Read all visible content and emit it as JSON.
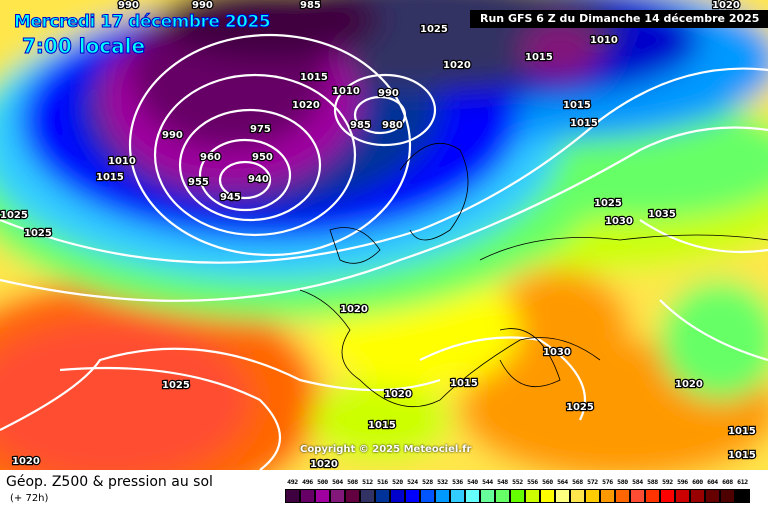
{
  "header": {
    "date": "Mercredi 17 décembre 2025",
    "time": "7:00 locale",
    "run": "Run GFS 6 Z du Dimanche 14 décembre 2025"
  },
  "copyright": "Copyright © 2025 Meteociel.fr",
  "footer": {
    "title": "Géop. Z500 & pression au sol",
    "subtitle": "(+ 72h)"
  },
  "legend": {
    "labels": [
      "492",
      "496",
      "500",
      "504",
      "508",
      "512",
      "516",
      "520",
      "524",
      "528",
      "532",
      "536",
      "540",
      "544",
      "548",
      "552",
      "556",
      "560",
      "564",
      "568",
      "572",
      "576",
      "580",
      "584",
      "588",
      "592",
      "596",
      "600",
      "604",
      "608",
      "612"
    ],
    "colors": [
      "#3f0040",
      "#660066",
      "#a000a0",
      "#82187a",
      "#620040",
      "#323264",
      "#003399",
      "#0000cc",
      "#0000ff",
      "#0055ff",
      "#0099ff",
      "#33ccff",
      "#66ffff",
      "#66ff99",
      "#66ff66",
      "#66ff00",
      "#ccff00",
      "#ffff00",
      "#ffff80",
      "#ffe64c",
      "#ffcc00",
      "#ff9900",
      "#ff6600",
      "#ff4d33",
      "#ff3300",
      "#ff0000",
      "#cc0000",
      "#990000",
      "#660000",
      "#4d0000",
      "#000000"
    ]
  },
  "pressure_labels": [
    {
      "text": "990",
      "lon": "nw"
    },
    {
      "text": "990",
      "lon": "n"
    },
    {
      "text": "985",
      "lon": "n"
    },
    {
      "text": "1025",
      "lon": "n"
    },
    {
      "text": "1010",
      "lon": "ne"
    },
    {
      "text": "1020",
      "lon": "n"
    },
    {
      "text": "1015",
      "lon": "n"
    },
    {
      "text": "1015",
      "lon": "c"
    },
    {
      "text": "1010",
      "lon": "c"
    },
    {
      "text": "1020",
      "lon": "c"
    },
    {
      "text": "990",
      "lon": "c"
    },
    {
      "text": "985",
      "lon": "c"
    },
    {
      "text": "980",
      "lon": "c"
    },
    {
      "text": "990",
      "lon": "w"
    },
    {
      "text": "1010",
      "lon": "w"
    },
    {
      "text": "1015",
      "lon": "w"
    },
    {
      "text": "975",
      "lon": "c"
    },
    {
      "text": "960",
      "lon": "c"
    },
    {
      "text": "950",
      "lon": "c"
    },
    {
      "text": "940",
      "lon": "c"
    },
    {
      "text": "945",
      "lon": "c"
    },
    {
      "text": "955",
      "lon": "c"
    },
    {
      "text": "1015",
      "lon": "e"
    },
    {
      "text": "1015",
      "lon": "e"
    },
    {
      "text": "1025",
      "lon": "w"
    },
    {
      "text": "1025",
      "lon": "e"
    },
    {
      "text": "1030",
      "lon": "e"
    },
    {
      "text": "1035",
      "lon": "e"
    },
    {
      "text": "1020",
      "lon": "c"
    },
    {
      "text": "1030",
      "lon": "se"
    },
    {
      "text": "1025",
      "lon": "se"
    },
    {
      "text": "1015",
      "lon": "c"
    },
    {
      "text": "1020",
      "lon": "c"
    },
    {
      "text": "1015",
      "lon": "c"
    },
    {
      "text": "1025",
      "lon": "sw"
    },
    {
      "text": "1020",
      "lon": "sw"
    },
    {
      "text": "1020",
      "lon": "s"
    },
    {
      "text": "1020",
      "lon": "e"
    },
    {
      "text": "1015",
      "lon": "e"
    },
    {
      "text": "1015",
      "lon": "e"
    },
    {
      "text": "1025",
      "lon": "w"
    },
    {
      "text": "1020",
      "lon": "ne"
    }
  ]
}
